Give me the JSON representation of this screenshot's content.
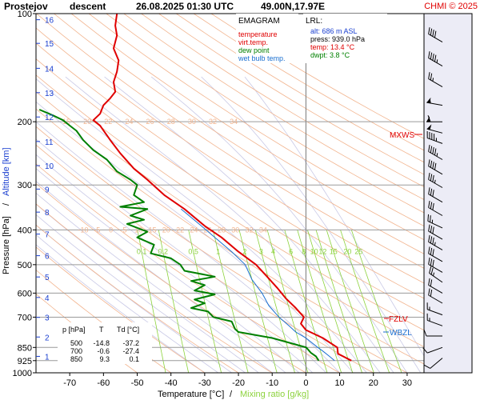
{
  "header": {
    "station": "Prostejov",
    "mode": "descent",
    "datetime": "26.08.2025 01:30 UTC",
    "coords": "49.00N,17.97E",
    "copyright": "CHMI © 2025"
  },
  "legend": {
    "title": "EMAGRAM",
    "items": [
      {
        "label": "temperature",
        "color": "#e00000"
      },
      {
        "label": "virt.temp.",
        "color": "#e00000"
      },
      {
        "label": "dew point",
        "color": "#008000"
      },
      {
        "label": "wet bulb temp.",
        "color": "#1a6fd0"
      }
    ]
  },
  "lrl": {
    "title": "LRL:",
    "alt": "alt: 686 m ASL",
    "press": "press: 939.0 hPa",
    "temp": "temp: 13.4 °C",
    "dwpt": "dwpt: 3.8 °C"
  },
  "side_labels": {
    "mxws": "MXWS",
    "fzlv": "FZLV",
    "wbzl": "WBZL"
  },
  "axes": {
    "ylabel_pressure": "Pressure [hPa]",
    "ylabel_sep": "/",
    "ylabel_altitude": "Altitude [km]",
    "xlabel_temp": "Temperature [°C]",
    "xlabel_sep": "/",
    "xlabel_mix": "Mixing ratio [g/kg]"
  },
  "colors": {
    "temperature": "#e00000",
    "dewpoint": "#008000",
    "wetbulb": "#1a6fd0",
    "dry_adiabat": "#f2b48e",
    "moist_adiabat": "#c9c9e6",
    "mixing_ratio": "#8cd23c",
    "isobar": "#9a9a9a",
    "altitude": "#1a3fd0"
  },
  "table": {
    "headers": [
      "p [hPa]",
      "T",
      "Td [°C]"
    ],
    "rows": [
      [
        "500",
        "-14.8",
        "-37.2"
      ],
      [
        "700",
        "-0.6",
        "-27.4"
      ],
      [
        "850",
        "9.3",
        "0.1"
      ]
    ]
  },
  "chart_data": {
    "type": "line",
    "title": "Prostejov descent 26.08.2025 01:30 UTC 49.00N,17.97E",
    "xlabel": "Temperature [°C] / Mixing ratio [g/kg]",
    "ylabel": "Pressure [hPa] / Altitude [km]",
    "xlim": [
      -80,
      35
    ],
    "ylim": [
      1000,
      100
    ],
    "y_scale": "log",
    "x_ticks": [
      -70,
      -60,
      -50,
      -40,
      -30,
      -20,
      -10,
      0,
      10,
      20,
      30
    ],
    "y_ticks": [
      100,
      200,
      300,
      400,
      500,
      600,
      700,
      850,
      925,
      1000
    ],
    "altitude_ticks_km": [
      {
        "km": 1,
        "p": 900
      },
      {
        "km": 2,
        "p": 795
      },
      {
        "km": 3,
        "p": 701
      },
      {
        "km": 4,
        "p": 617
      },
      {
        "km": 5,
        "p": 541
      },
      {
        "km": 6,
        "p": 472
      },
      {
        "km": 7,
        "p": 411
      },
      {
        "km": 8,
        "p": 357
      },
      {
        "km": 9,
        "p": 308
      },
      {
        "km": 10,
        "p": 265
      },
      {
        "km": 11,
        "p": 227
      },
      {
        "km": 12,
        "p": 194
      },
      {
        "km": 13,
        "p": 166
      },
      {
        "km": 14,
        "p": 142
      },
      {
        "km": 15,
        "p": 121
      },
      {
        "km": 16,
        "p": 104
      }
    ],
    "series": [
      {
        "name": "temperature",
        "points": [
          [
            13.5,
            925
          ],
          [
            12.5,
            915
          ],
          [
            11.5,
            905
          ],
          [
            10.5,
            895
          ],
          [
            9.5,
            885
          ],
          [
            9.3,
            850
          ],
          [
            5.0,
            800
          ],
          [
            0.0,
            760
          ],
          [
            -1.5,
            730
          ],
          [
            -0.6,
            700
          ],
          [
            -3.0,
            660
          ],
          [
            -6.0,
            620
          ],
          [
            -8.5,
            580
          ],
          [
            -11.5,
            540
          ],
          [
            -14.8,
            500
          ],
          [
            -20.0,
            460
          ],
          [
            -25.0,
            420
          ],
          [
            -30.0,
            390
          ],
          [
            -36.0,
            350
          ],
          [
            -42.0,
            320
          ],
          [
            -47.0,
            290
          ],
          [
            -51.0,
            270
          ],
          [
            -55.0,
            245
          ],
          [
            -58.0,
            225
          ],
          [
            -61.0,
            205
          ],
          [
            -63.0,
            198
          ],
          [
            -61.0,
            190
          ],
          [
            -60.0,
            180
          ],
          [
            -58.0,
            172
          ],
          [
            -56.5,
            165
          ],
          [
            -57.0,
            155
          ],
          [
            -56.0,
            145
          ],
          [
            -55.5,
            135
          ],
          [
            -57.0,
            125
          ],
          [
            -56.0,
            115
          ],
          [
            -56.5,
            108
          ],
          [
            -56.0,
            100
          ]
        ]
      },
      {
        "name": "dew point",
        "points": [
          [
            3.8,
            925
          ],
          [
            3.0,
            900
          ],
          [
            1.5,
            880
          ],
          [
            0.1,
            850
          ],
          [
            -10.0,
            800
          ],
          [
            -20.0,
            770
          ],
          [
            -21.0,
            755
          ],
          [
            -22.0,
            720
          ],
          [
            -27.4,
            700
          ],
          [
            -29.0,
            675
          ],
          [
            -34.0,
            660
          ],
          [
            -30.0,
            640
          ],
          [
            -33.0,
            625
          ],
          [
            -27.0,
            605
          ],
          [
            -33.0,
            590
          ],
          [
            -30.0,
            570
          ],
          [
            -34.0,
            555
          ],
          [
            -27.0,
            540
          ],
          [
            -36.0,
            520
          ],
          [
            -37.2,
            500
          ],
          [
            -40.0,
            480
          ],
          [
            -46.0,
            465
          ],
          [
            -45.0,
            440
          ],
          [
            -50.0,
            420
          ],
          [
            -47.0,
            405
          ],
          [
            -53.0,
            385
          ],
          [
            -48.0,
            375
          ],
          [
            -52.0,
            365
          ],
          [
            -47.0,
            350
          ],
          [
            -55.0,
            345
          ],
          [
            -48.0,
            335
          ],
          [
            -51.0,
            320
          ],
          [
            -50.0,
            300
          ],
          [
            -52.0,
            290
          ],
          [
            -56.0,
            275
          ],
          [
            -59.0,
            255
          ],
          [
            -63.0,
            240
          ],
          [
            -66.0,
            225
          ],
          [
            -68.0,
            212
          ],
          [
            -70.0,
            205
          ],
          [
            -72.0,
            198
          ],
          [
            -75.0,
            192
          ],
          [
            -79.0,
            185
          ]
        ]
      },
      {
        "name": "wet bulb temp.",
        "points": [
          [
            8.5,
            925
          ],
          [
            7.0,
            900
          ],
          [
            5.0,
            870
          ],
          [
            3.5,
            850
          ],
          [
            0.0,
            800
          ],
          [
            -3.0,
            770
          ],
          [
            -5.0,
            740
          ],
          [
            -8.0,
            700
          ],
          [
            -11.0,
            650
          ],
          [
            -13.0,
            600
          ],
          [
            -16.0,
            550
          ],
          [
            -18.0,
            500
          ],
          [
            -22.0,
            460
          ],
          [
            -27.0,
            420
          ],
          [
            -31.0,
            390
          ],
          [
            -37.0,
            350
          ]
        ]
      }
    ],
    "dry_adiabat_labels": {
      "upper": {
        "p": 200,
        "values": [
          "15",
          "20",
          "22",
          "24",
          "26",
          "28",
          "30",
          "32",
          "34"
        ]
      },
      "lower": {
        "p": 400,
        "values": [
          "-10",
          "-5",
          "0",
          "5",
          "10",
          "15",
          "20",
          "22",
          "24",
          "26",
          "28",
          "30",
          "32",
          "34"
        ]
      }
    },
    "mixing_ratio_labels": {
      "p": 460,
      "values": [
        "0.1",
        "0.2",
        "0.5",
        "1",
        "2",
        "3",
        "4",
        "6",
        "8",
        "10",
        "12",
        "15",
        "20",
        "25"
      ]
    },
    "mixing_ratio_g_per_kg": [
      0.1,
      0.2,
      0.5,
      1,
      2,
      3,
      4,
      6,
      8,
      10,
      12,
      15,
      20,
      25
    ],
    "wind_barbs": [
      {
        "p": 120,
        "dir": 300,
        "speed": 40
      },
      {
        "p": 140,
        "dir": 300,
        "speed": 45
      },
      {
        "p": 160,
        "dir": 300,
        "speed": 25
      },
      {
        "p": 180,
        "dir": 280,
        "speed": 55
      },
      {
        "p": 200,
        "dir": 270,
        "speed": 60
      },
      {
        "p": 215,
        "dir": 285,
        "speed": 50
      },
      {
        "p": 230,
        "dir": 290,
        "speed": 45
      },
      {
        "p": 255,
        "dir": 300,
        "speed": 45
      },
      {
        "p": 280,
        "dir": 300,
        "speed": 40
      },
      {
        "p": 305,
        "dir": 300,
        "speed": 35
      },
      {
        "p": 335,
        "dir": 300,
        "speed": 30
      },
      {
        "p": 365,
        "dir": 300,
        "speed": 30
      },
      {
        "p": 395,
        "dir": 295,
        "speed": 25
      },
      {
        "p": 425,
        "dir": 300,
        "speed": 30
      },
      {
        "p": 455,
        "dir": 300,
        "speed": 35
      },
      {
        "p": 490,
        "dir": 300,
        "speed": 30
      },
      {
        "p": 525,
        "dir": 300,
        "speed": 30
      },
      {
        "p": 560,
        "dir": 305,
        "speed": 25
      },
      {
        "p": 600,
        "dir": 300,
        "speed": 20
      },
      {
        "p": 640,
        "dir": 300,
        "speed": 20
      },
      {
        "p": 690,
        "dir": 290,
        "speed": 15
      },
      {
        "p": 740,
        "dir": 290,
        "speed": 15
      },
      {
        "p": 790,
        "dir": 270,
        "speed": 10
      },
      {
        "p": 850,
        "dir": 250,
        "speed": 10
      },
      {
        "p": 910,
        "dir": 230,
        "speed": 10
      }
    ],
    "levels": {
      "mxws_p": 196,
      "fzlv_p": 700,
      "wbzl_p": 755
    },
    "grid": true
  }
}
